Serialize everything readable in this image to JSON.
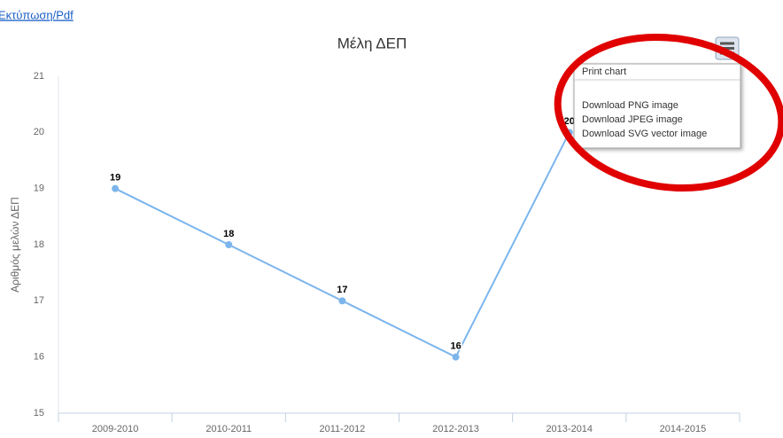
{
  "link": "Εκτύπωση/Pdf",
  "chart_data": {
    "type": "line",
    "title": "Μέλη ΔΕΠ",
    "y_label": "Αριθμός μελών ΔΕΠ",
    "categories": [
      "2009-2010",
      "2010-2011",
      "2011-2012",
      "2012-2013",
      "2013-2014",
      "2014-2015"
    ],
    "series": [
      {
        "name": "Μέλη ΔΕΠ",
        "color": "#7cb5ec",
        "values": [
          19,
          18,
          17,
          16,
          20,
          null
        ]
      }
    ],
    "ylim": [
      15,
      21
    ],
    "yticks": [
      15,
      16,
      17,
      18,
      19,
      20,
      21
    ],
    "grid": false
  },
  "menu": {
    "items": [
      "Print chart",
      "Download PNG image",
      "Download JPEG image",
      "Download SVG vector image"
    ]
  }
}
